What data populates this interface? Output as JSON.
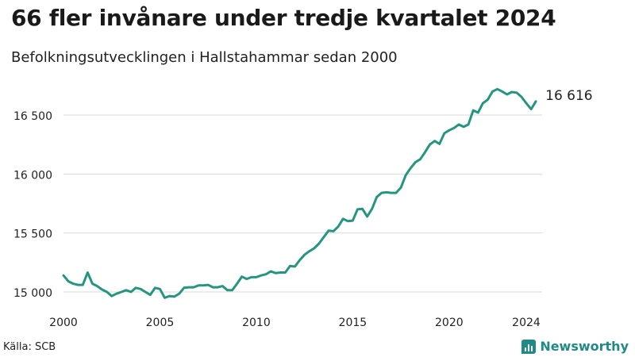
{
  "title": "66 fler invånare under tredje kvartalet 2024",
  "subtitle": "Befolkningsutvecklingen i Hallstahammar sedan 2000",
  "source": "Källa: SCB",
  "brand": "Newsworthy",
  "colors": {
    "line": "#26957f",
    "grid": "#d9d9d9",
    "brand": "#1f8a86"
  },
  "chart_data": {
    "type": "line",
    "title": "66 fler invånare under tredje kvartalet 2024",
    "subtitle": "Befolkningsutvecklingen i Hallstahammar sedan 2000",
    "xlim": [
      2000,
      2025
    ],
    "ylim": [
      14950,
      16750
    ],
    "x_ticks": [
      2000,
      2005,
      2010,
      2015,
      2020,
      2024
    ],
    "x_tick_labels": [
      "2000",
      "2005",
      "2010",
      "2015",
      "2020",
      "2024"
    ],
    "y_ticks": [
      15000,
      15500,
      16000,
      16500
    ],
    "y_tick_labels": [
      "15 000",
      "15 500",
      "16 000",
      "16 500"
    ],
    "grid": "horizontal",
    "end_label": "16 616",
    "series": [
      {
        "x": [
          2000.0,
          2000.25,
          2000.5,
          2000.75,
          2001.0,
          2001.25,
          2001.5,
          2001.75,
          2002.0,
          2002.25,
          2002.5,
          2002.75,
          2003.0,
          2003.25,
          2003.5,
          2003.75,
          2004.0,
          2004.25,
          2004.5,
          2004.75,
          2005.0,
          2005.25,
          2005.5,
          2005.75,
          2006.0,
          2006.25,
          2006.5,
          2006.75,
          2007.0,
          2007.25,
          2007.5,
          2007.75,
          2008.0,
          2008.25,
          2008.5,
          2008.75,
          2009.0,
          2009.25,
          2009.5,
          2009.75,
          2010.0,
          2010.25,
          2010.5,
          2010.75,
          2011.0,
          2011.25,
          2011.5,
          2011.75,
          2012.0,
          2012.25,
          2012.5,
          2012.75,
          2013.0,
          2013.25,
          2013.5,
          2013.75,
          2014.0,
          2014.25,
          2014.5,
          2014.75,
          2015.0,
          2015.25,
          2015.5,
          2015.75,
          2016.0,
          2016.25,
          2016.5,
          2016.75,
          2017.0,
          2017.25,
          2017.5,
          2017.75,
          2018.0,
          2018.25,
          2018.5,
          2018.75,
          2019.0,
          2019.25,
          2019.5,
          2019.75,
          2020.0,
          2020.25,
          2020.5,
          2020.75,
          2021.0,
          2021.25,
          2021.5,
          2021.75,
          2022.0,
          2022.25,
          2022.5,
          2022.75,
          2023.0,
          2023.25,
          2023.5,
          2023.75,
          2024.0,
          2024.25,
          2024.5
        ],
        "values": [
          15140,
          15090,
          15070,
          15060,
          15060,
          15165,
          15070,
          15050,
          15020,
          15000,
          14965,
          14985,
          15000,
          15015,
          15000,
          15035,
          15025,
          15000,
          14975,
          15035,
          15025,
          14950,
          14965,
          14960,
          14985,
          15035,
          15040,
          15040,
          15055,
          15055,
          15060,
          15040,
          15040,
          15050,
          15015,
          15015,
          15070,
          15130,
          15110,
          15125,
          15125,
          15140,
          15150,
          15175,
          15160,
          15165,
          15165,
          15220,
          15215,
          15270,
          15315,
          15345,
          15370,
          15410,
          15465,
          15520,
          15515,
          15555,
          15620,
          15600,
          15605,
          15700,
          15705,
          15640,
          15705,
          15805,
          15840,
          15845,
          15840,
          15840,
          15885,
          15990,
          16050,
          16100,
          16125,
          16185,
          16250,
          16280,
          16255,
          16345,
          16370,
          16390,
          16420,
          16400,
          16420,
          16540,
          16520,
          16600,
          16630,
          16700,
          16720,
          16700,
          16675,
          16695,
          16690,
          16655,
          16600,
          16550,
          16616
        ]
      }
    ]
  }
}
